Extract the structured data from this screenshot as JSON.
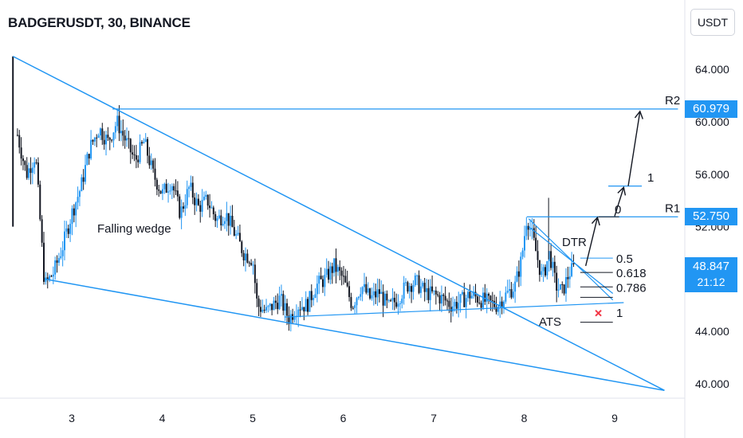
{
  "header": {
    "title": "BADGERUSDT, 30, BINANCE",
    "currency_button": "USDT"
  },
  "chart_data": {
    "type": "candlestick",
    "title": "BADGERUSDT, 30, BINANCE",
    "x_ticks": [
      "3",
      "4",
      "5",
      "6",
      "7",
      "8",
      "9"
    ],
    "y_ticks": [
      "64.000",
      "60.000",
      "56.000",
      "52.000",
      "48.000",
      "44.000",
      "40.000"
    ],
    "ylim": [
      39.0,
      65.5
    ],
    "price_path": [
      [
        2.4,
        59.0
      ],
      [
        2.5,
        56.0
      ],
      [
        2.6,
        57.5
      ],
      [
        2.7,
        47.5
      ],
      [
        2.8,
        48.5
      ],
      [
        2.9,
        50.5
      ],
      [
        3.0,
        53.0
      ],
      [
        3.1,
        55.0
      ],
      [
        3.2,
        58.0
      ],
      [
        3.3,
        59.5
      ],
      [
        3.4,
        58.5
      ],
      [
        3.5,
        60.0
      ],
      [
        3.6,
        58.5
      ],
      [
        3.7,
        57.0
      ],
      [
        3.8,
        58.5
      ],
      [
        3.9,
        56.0
      ],
      [
        4.0,
        54.5
      ],
      [
        4.1,
        55.5
      ],
      [
        4.2,
        53.0
      ],
      [
        4.3,
        55.0
      ],
      [
        4.4,
        53.5
      ],
      [
        4.5,
        54.0
      ],
      [
        4.6,
        52.5
      ],
      [
        4.7,
        53.0
      ],
      [
        4.8,
        51.5
      ],
      [
        4.9,
        50.0
      ],
      [
        5.0,
        49.5
      ],
      [
        5.05,
        46.0
      ],
      [
        5.15,
        45.5
      ],
      [
        5.3,
        46.5
      ],
      [
        5.4,
        45.0
      ],
      [
        5.5,
        46.0
      ],
      [
        5.6,
        46.0
      ],
      [
        5.7,
        47.5
      ],
      [
        5.8,
        48.0
      ],
      [
        5.9,
        49.0
      ],
      [
        6.0,
        48.0
      ],
      [
        6.1,
        46.0
      ],
      [
        6.2,
        47.5
      ],
      [
        6.3,
        46.5
      ],
      [
        6.4,
        47.0
      ],
      [
        6.5,
        45.8
      ],
      [
        6.6,
        46.5
      ],
      [
        6.7,
        47.5
      ],
      [
        6.8,
        47.8
      ],
      [
        6.9,
        47.0
      ],
      [
        7.0,
        46.8
      ],
      [
        7.1,
        46.5
      ],
      [
        7.2,
        46.0
      ],
      [
        7.3,
        46.3
      ],
      [
        7.4,
        46.8
      ],
      [
        7.5,
        46.5
      ],
      [
        7.6,
        46.2
      ],
      [
        7.7,
        46.0
      ],
      [
        7.8,
        46.8
      ],
      [
        7.9,
        47.5
      ],
      [
        7.97,
        49.5
      ],
      [
        8.03,
        52.8
      ],
      [
        8.1,
        51.0
      ],
      [
        8.2,
        48.0
      ],
      [
        8.28,
        50.0
      ],
      [
        8.35,
        47.5
      ],
      [
        8.42,
        47.0
      ],
      [
        8.5,
        48.5
      ],
      [
        8.56,
        48.9
      ]
    ],
    "spike_high": [
      8.27,
      54.2
    ],
    "current_price": 48.847,
    "countdown": "21:12",
    "levels": [
      {
        "name": "R2",
        "value": 60.979
      },
      {
        "name": "R1",
        "value": 52.75
      }
    ],
    "annotations": {
      "pattern": "Falling wedge",
      "pattern_2": "DTR",
      "pattern_3": "ATS",
      "fib_0": "0",
      "fib_1_target": "1",
      "fib_bottom": "1",
      "fib_levels": [
        {
          "label": "0.5",
          "value": 49.6
        },
        {
          "label": "0.618",
          "value": 48.5
        },
        {
          "label": "0.786",
          "value": 47.4
        }
      ]
    },
    "trendlines": {
      "wedge_upper": [
        [
          2.35,
          65.0
        ],
        [
          9.55,
          39.5
        ]
      ],
      "wedge_lower": [
        [
          2.7,
          48.0
        ],
        [
          9.55,
          39.5
        ]
      ],
      "support": [
        [
          5.35,
          45.1
        ],
        [
          9.1,
          46.2
        ]
      ],
      "resistance_channel": [
        [
          8.05,
          52.6
        ],
        [
          8.98,
          46.4
        ]
      ],
      "r2_line": [
        [
          3.45,
          60.979
        ],
        [
          9.7,
          60.979
        ]
      ],
      "r1_line": [
        [
          8.03,
          52.75
        ],
        [
          9.7,
          52.75
        ]
      ]
    },
    "colors": {
      "line": "#2196f3",
      "up": "#2196f3",
      "down": "#131722",
      "price_tag": "#2196f3",
      "marker": "#f23645"
    }
  }
}
